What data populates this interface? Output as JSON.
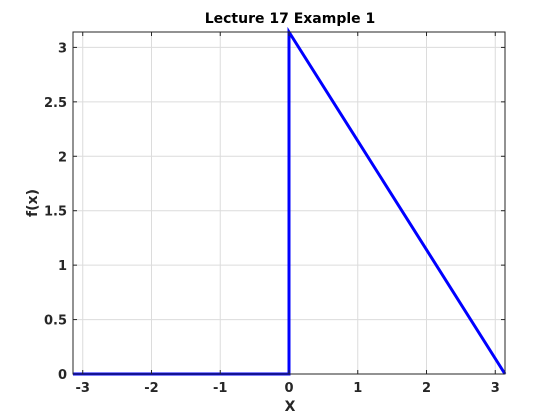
{
  "chart_data": {
    "type": "line",
    "title": "Lecture 17 Example 1",
    "xlabel": "X",
    "ylabel": "f(x)",
    "xlim": [
      -3.14159,
      3.14159
    ],
    "ylim": [
      0,
      3.14159
    ],
    "xticks": [
      -3,
      -2,
      -1,
      0,
      1,
      2,
      3
    ],
    "xtick_labels": [
      "-3",
      "-2",
      "-1",
      "0",
      "1",
      "2",
      "3"
    ],
    "yticks": [
      0,
      0.5,
      1,
      1.5,
      2,
      2.5,
      3
    ],
    "ytick_labels": [
      "0",
      "0.5",
      "1",
      "1.5",
      "2",
      "2.5",
      "3"
    ],
    "grid": true,
    "series": [
      {
        "color": "#0000ff",
        "x": [
          -3.14159,
          0,
          0,
          3.14159
        ],
        "y": [
          0,
          0,
          3.14159,
          0
        ]
      }
    ]
  }
}
